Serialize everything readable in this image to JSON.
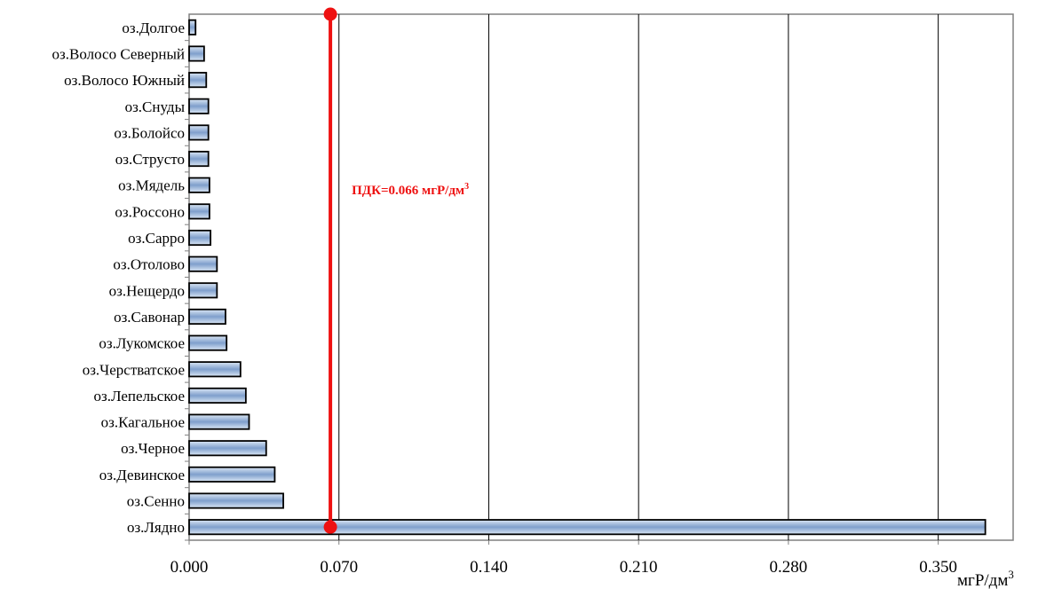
{
  "chart_data": {
    "type": "bar",
    "orientation": "horizontal",
    "categories": [
      "оз.Долгое",
      "оз.Волосо Северный",
      "оз.Волосо Южный",
      "оз.Снуды",
      "оз.Болойсо",
      "оз.Струсто",
      "оз.Мядель",
      "оз.Россоно",
      "оз.Сарро",
      "оз.Отолово",
      "оз.Нещердо",
      "оз.Савонар",
      "оз.Лукомское",
      "оз.Черстватское",
      "оз.Лепельское",
      "оз.Кагальное",
      "оз.Черное",
      "оз.Девинское",
      "оз.Сенно",
      "оз.Лядно"
    ],
    "values": [
      0.003,
      0.007,
      0.008,
      0.009,
      0.009,
      0.009,
      0.0095,
      0.0095,
      0.01,
      0.013,
      0.013,
      0.017,
      0.0175,
      0.024,
      0.0265,
      0.028,
      0.036,
      0.04,
      0.044,
      0.372
    ],
    "xlim": [
      0,
      0.385
    ],
    "xticks": [
      "0.000",
      "0.070",
      "0.140",
      "0.210",
      "0.280",
      "0.350"
    ],
    "tick_values": [
      0,
      0.07,
      0.14,
      0.21,
      0.28,
      0.35
    ],
    "x_unit": "мгР/дм",
    "x_unit_sup": "3",
    "grid": "vertical",
    "bar_color": "#a9c3e4",
    "reference_line": {
      "value": 0.066,
      "label": "ПДК=0.066 мгР/дм",
      "label_sup": "3",
      "color": "#ee1111"
    }
  }
}
